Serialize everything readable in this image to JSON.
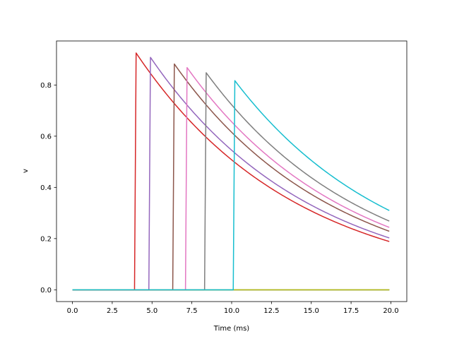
{
  "chart_data": {
    "type": "line",
    "title": "",
    "xlabel": "Time (ms)",
    "ylabel": "v",
    "xlim": [
      -1.0,
      21.0
    ],
    "ylim": [
      -0.046,
      0.972
    ],
    "xticks": [
      "0.0",
      "2.5",
      "5.0",
      "7.5",
      "10.0",
      "12.5",
      "15.0",
      "17.5",
      "20.0"
    ],
    "yticks": [
      "0.0",
      "0.2",
      "0.4",
      "0.6",
      "0.8"
    ],
    "grid": false,
    "legend": "none",
    "decay_tau_ms": 10,
    "series": [
      {
        "color": "#1f77b4",
        "spike_time": null,
        "peak": null
      },
      {
        "color": "#ff7f0e",
        "spike_time": null,
        "peak": null
      },
      {
        "color": "#2ca02c",
        "spike_time": null,
        "peak": null
      },
      {
        "color": "#d62728",
        "spike_time": 4.0,
        "peak": 0.925
      },
      {
        "color": "#9467bd",
        "spike_time": 4.9,
        "peak": 0.908
      },
      {
        "color": "#8c564b",
        "spike_time": 6.4,
        "peak": 0.882
      },
      {
        "color": "#e377c2",
        "spike_time": 7.2,
        "peak": 0.868
      },
      {
        "color": "#7f7f7f",
        "spike_time": 8.4,
        "peak": 0.848
      },
      {
        "color": "#bcbd22",
        "spike_time": null,
        "peak": null
      },
      {
        "color": "#17becf",
        "spike_time": 10.2,
        "peak": 0.817
      }
    ],
    "x_end": 19.9
  }
}
